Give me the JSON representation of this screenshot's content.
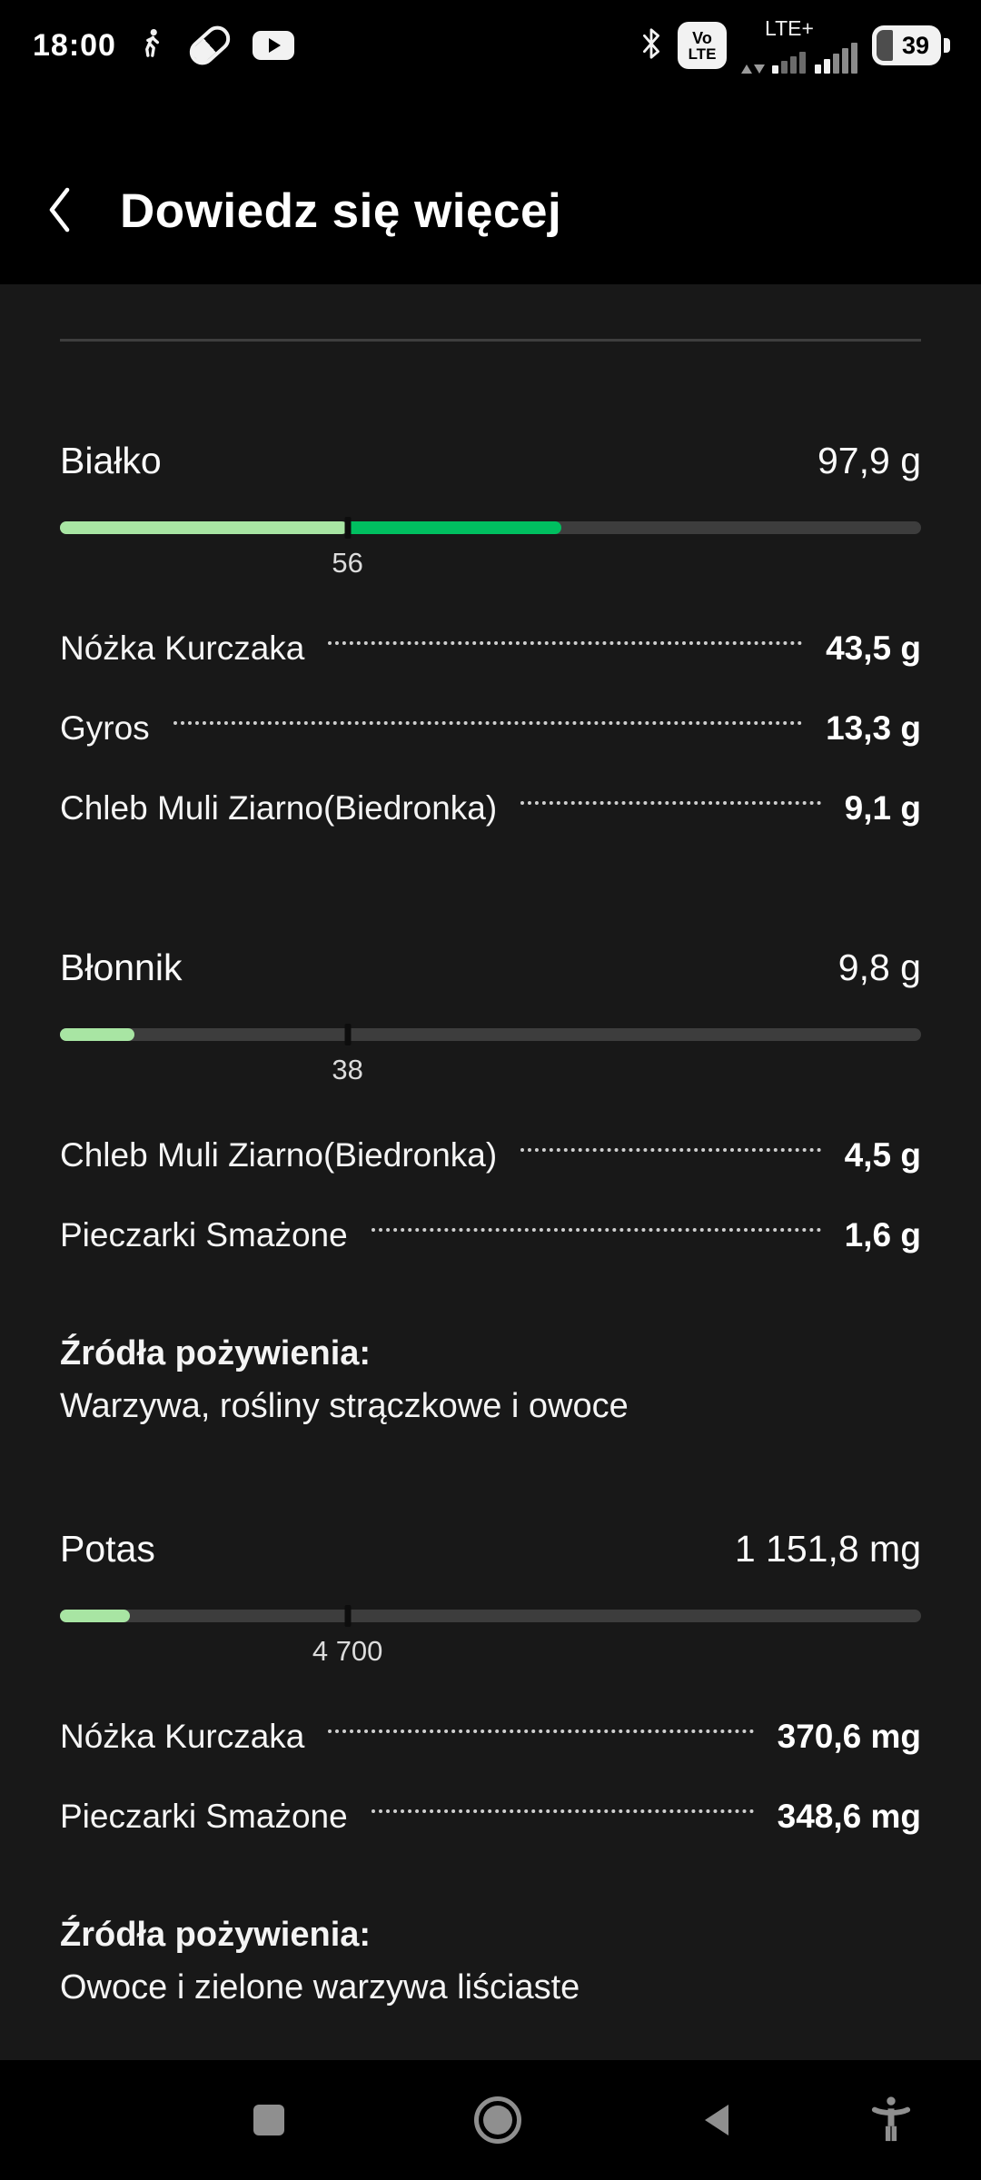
{
  "status_bar": {
    "time": "18:00",
    "network_label": "LTE+",
    "volte_top": "Vo",
    "volte_bottom": "LTE",
    "battery_level": "39"
  },
  "header": {
    "title": "Dowiedz się więcej"
  },
  "colors": {
    "fill_light": "#a8e5a3",
    "fill_dark": "#00bf60",
    "track": "#3d3d3d",
    "content_bg": "#181818",
    "divider": "#3e3e3e"
  },
  "nutrients": [
    {
      "name": "Białko",
      "amount": "97,9 g",
      "value": 97.9,
      "goal": 56,
      "goal_label": "56",
      "unit": "g",
      "bar": {
        "light_pct": 33.4,
        "dark_pct": 24.8,
        "tick_pct": 33.4
      },
      "foods": [
        {
          "label": "Nóżka Kurczaka",
          "value": "43,5 g"
        },
        {
          "label": "Gyros",
          "value": "13,3 g"
        },
        {
          "label": "Chleb Muli Ziarno(Biedronka)",
          "value": "9,1 g"
        }
      ]
    },
    {
      "name": "Błonnik",
      "amount": "9,8 g",
      "value": 9.8,
      "goal": 38,
      "goal_label": "38",
      "unit": "g",
      "bar": {
        "light_pct": 8.6,
        "dark_pct": 0,
        "tick_pct": 33.4
      },
      "foods": [
        {
          "label": "Chleb Muli Ziarno(Biedronka)",
          "value": "4,5 g"
        },
        {
          "label": "Pieczarki Smażone",
          "value": "1,6 g"
        }
      ],
      "sources_heading": "Źródła pożywienia:",
      "sources_text": "Warzywa, rośliny strączkowe i owoce"
    },
    {
      "name": "Potas",
      "amount": "1 151,8 mg",
      "value": 1151.8,
      "goal": 4700,
      "goal_label": "4 700",
      "unit": "mg",
      "bar": {
        "light_pct": 8.1,
        "dark_pct": 0,
        "tick_pct": 33.4
      },
      "foods": [
        {
          "label": "Nóżka Kurczaka",
          "value": "370,6 mg"
        },
        {
          "label": "Pieczarki Smażone",
          "value": "348,6 mg"
        }
      ],
      "sources_heading": "Źródła pożywienia:",
      "sources_text": "Owoce i zielone warzywa liściaste"
    }
  ]
}
